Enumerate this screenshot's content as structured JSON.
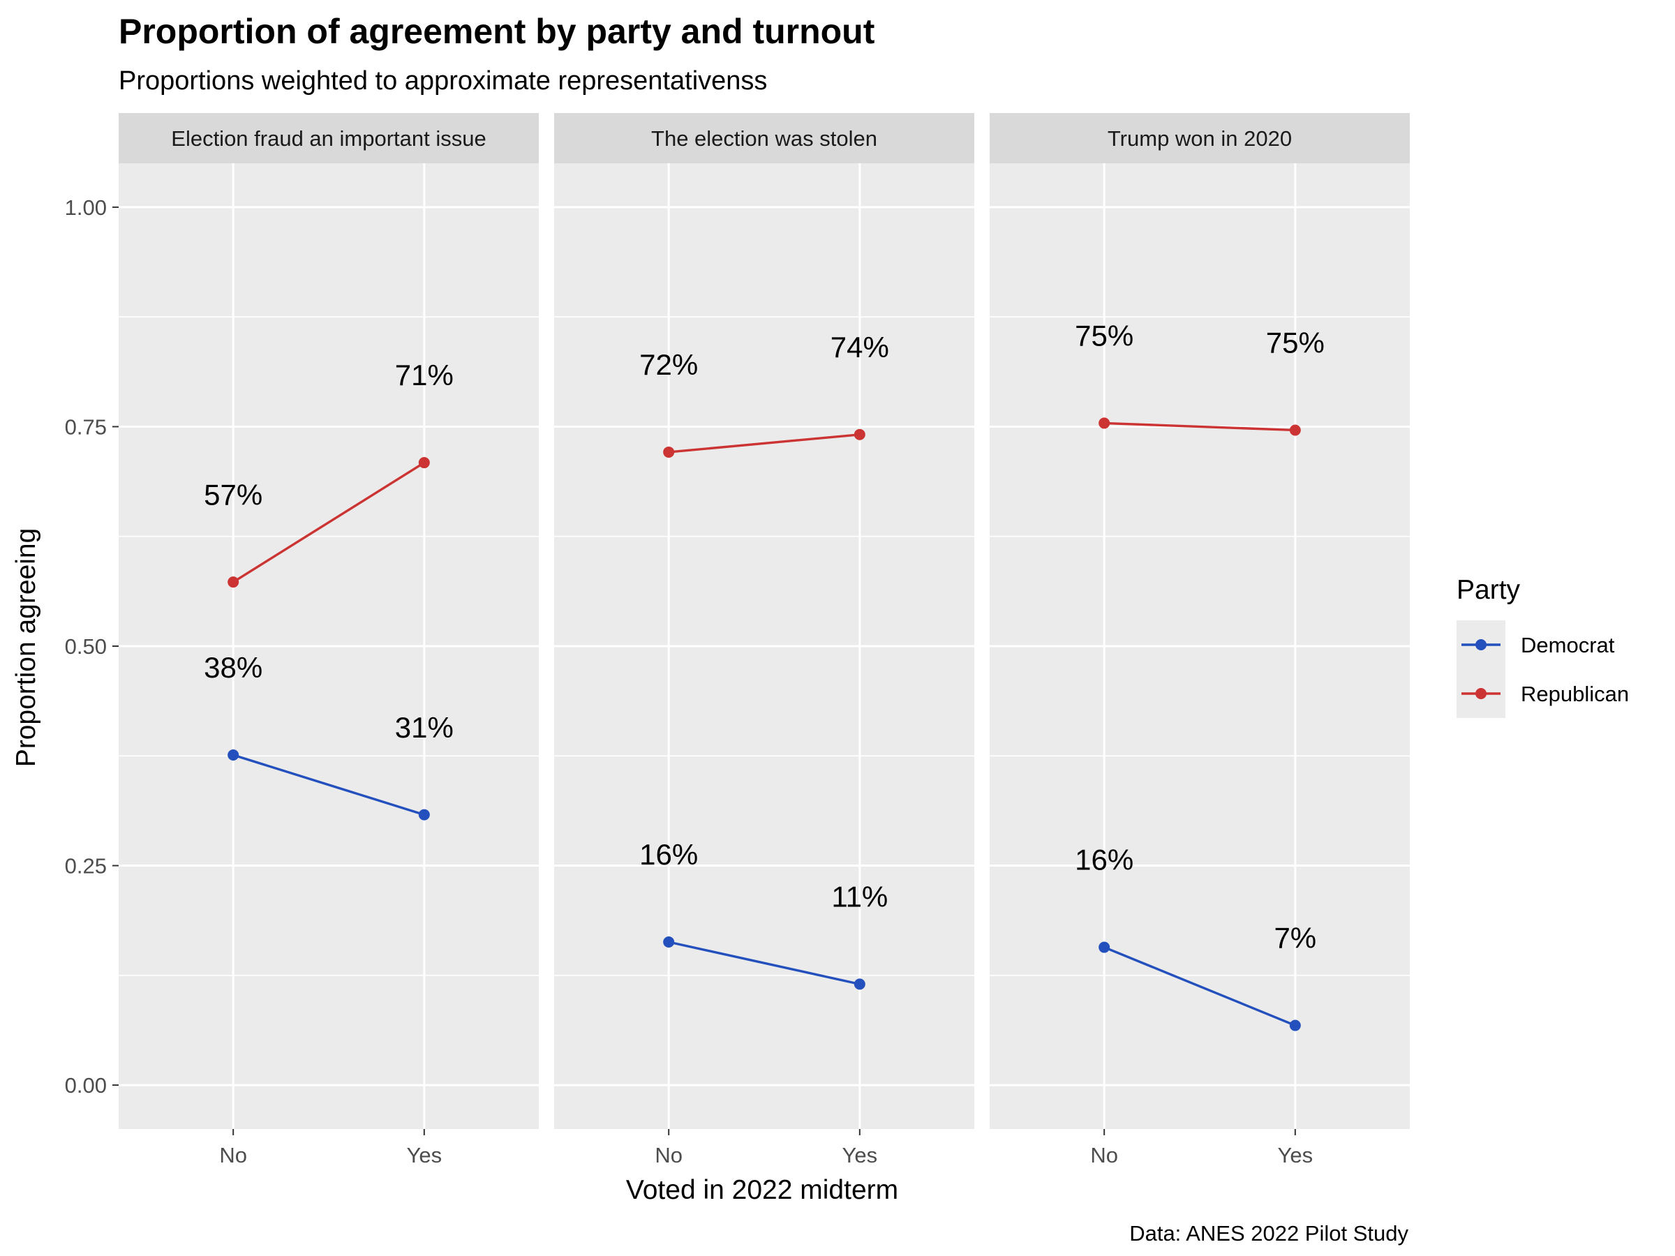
{
  "chart_data": {
    "type": "line",
    "title": "Proportion of agreement by party and turnout",
    "subtitle": "Proportions weighted to approximate representativenss",
    "xlabel": "Voted in 2022 midterm",
    "ylabel": "Proportion agreeing",
    "caption": "Data: ANES 2022 Pilot Study",
    "categories": [
      "No",
      "Yes"
    ],
    "ylim": [
      -0.05,
      1.05
    ],
    "yticks": [
      0.0,
      0.25,
      0.5,
      0.75,
      1.0
    ],
    "ytick_labels": [
      "0.00",
      "0.25",
      "0.50",
      "0.75",
      "1.00"
    ],
    "grid": true,
    "legend": {
      "title": "Party",
      "position": "right",
      "entries": [
        {
          "name": "Democrat",
          "color": "#2350bd"
        },
        {
          "name": "Republican",
          "color": "#cc3333"
        }
      ]
    },
    "panels": [
      {
        "title": "Election fraud an important issue",
        "series": [
          {
            "name": "Democrat",
            "values": [
              0.376,
              0.308
            ],
            "labels": [
              "38%",
              "31%"
            ]
          },
          {
            "name": "Republican",
            "values": [
              0.573,
              0.709
            ],
            "labels": [
              "57%",
              "71%"
            ]
          }
        ]
      },
      {
        "title": "The election was stolen",
        "series": [
          {
            "name": "Democrat",
            "values": [
              0.163,
              0.115
            ],
            "labels": [
              "16%",
              "11%"
            ]
          },
          {
            "name": "Republican",
            "values": [
              0.721,
              0.741
            ],
            "labels": [
              "72%",
              "74%"
            ]
          }
        ]
      },
      {
        "title": "Trump won in 2020",
        "series": [
          {
            "name": "Democrat",
            "values": [
              0.157,
              0.068
            ],
            "labels": [
              "16%",
              "7%"
            ]
          },
          {
            "name": "Republican",
            "values": [
              0.754,
              0.746
            ],
            "labels": [
              "75%",
              "75%"
            ]
          }
        ]
      }
    ]
  }
}
